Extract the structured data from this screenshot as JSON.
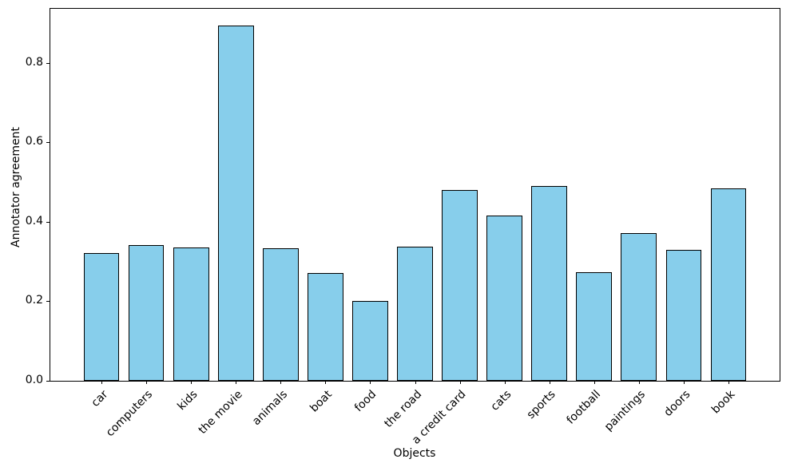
{
  "chart_data": {
    "type": "bar",
    "xlabel": "Objects",
    "ylabel": "Annotator agreement",
    "categories": [
      "car",
      "computers",
      "kids",
      "the movie",
      "animals",
      "boat",
      "food",
      "the road",
      "a credit card",
      "cats",
      "sports",
      "football",
      "paintings",
      "doors",
      "book"
    ],
    "values": [
      0.322,
      0.342,
      0.336,
      0.893,
      0.334,
      0.271,
      0.201,
      0.337,
      0.481,
      0.415,
      0.49,
      0.274,
      0.371,
      0.329,
      0.484
    ],
    "yticks": {
      "labels": [
        "0.0",
        "0.2",
        "0.4",
        "0.6",
        "0.8"
      ],
      "values": [
        0.0,
        0.2,
        0.4,
        0.6,
        0.8
      ]
    },
    "ylim": [
      0,
      0.936
    ],
    "xlim": [
      -1.14,
      15.14
    ],
    "bar_width": 0.8,
    "grid": false,
    "legend": "none",
    "colors": {
      "bar_fill": "#87CEEB",
      "bar_edge": "#000000",
      "axis": "#000000",
      "text": "#000000",
      "background": "#ffffff"
    }
  }
}
